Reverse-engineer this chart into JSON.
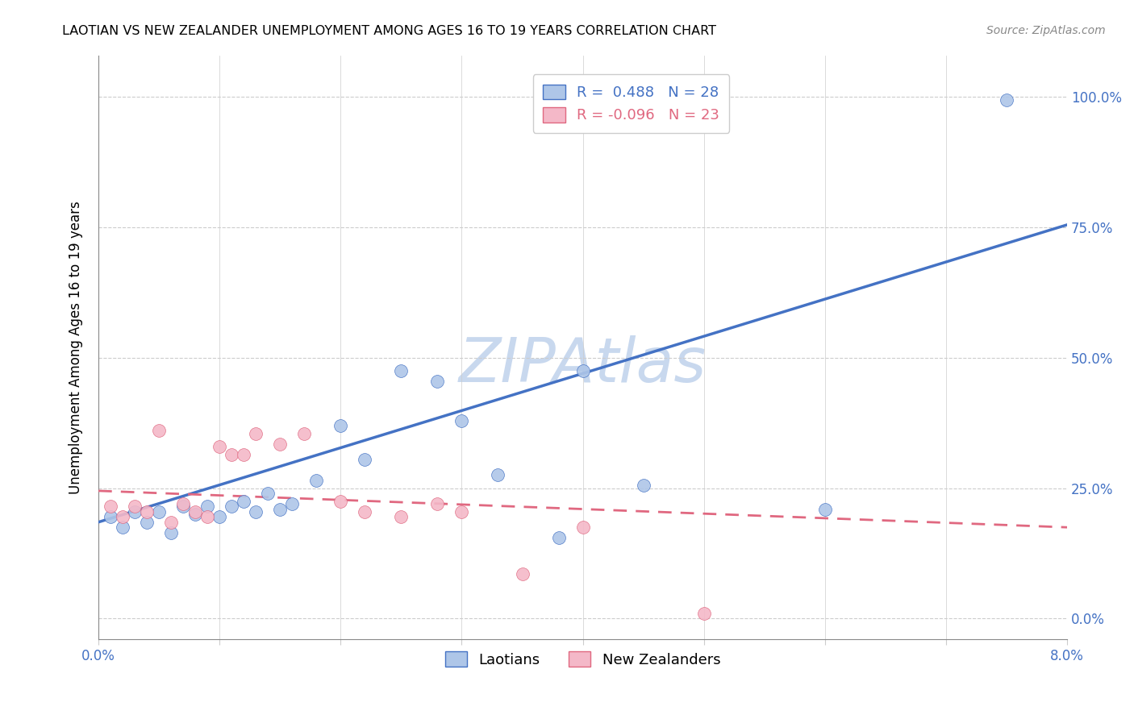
{
  "title": "LAOTIAN VS NEW ZEALANDER UNEMPLOYMENT AMONG AGES 16 TO 19 YEARS CORRELATION CHART",
  "source": "Source: ZipAtlas.com",
  "ylabel": "Unemployment Among Ages 16 to 19 years",
  "y_tick_labels": [
    "0.0%",
    "25.0%",
    "50.0%",
    "75.0%",
    "100.0%"
  ],
  "y_tick_values": [
    0.0,
    0.25,
    0.5,
    0.75,
    1.0
  ],
  "xlim": [
    0.0,
    0.08
  ],
  "ylim": [
    -0.04,
    1.08
  ],
  "legend_r_laotian": "R =  0.488",
  "legend_n_laotian": "N = 28",
  "legend_r_nz": "R = -0.096",
  "legend_n_nz": "N = 23",
  "laotian_color": "#aec6e8",
  "nz_color": "#f4b8c8",
  "line_laotian_color": "#4472c4",
  "line_nz_color": "#e06880",
  "watermark_color": "#c8d8ee",
  "laotian_scatter_x": [
    0.001,
    0.002,
    0.003,
    0.004,
    0.005,
    0.006,
    0.007,
    0.008,
    0.009,
    0.01,
    0.011,
    0.012,
    0.013,
    0.014,
    0.015,
    0.016,
    0.018,
    0.02,
    0.022,
    0.025,
    0.028,
    0.03,
    0.033,
    0.038,
    0.04,
    0.045,
    0.06,
    0.075
  ],
  "laotian_scatter_y": [
    0.195,
    0.175,
    0.205,
    0.185,
    0.205,
    0.165,
    0.215,
    0.2,
    0.215,
    0.195,
    0.215,
    0.225,
    0.205,
    0.24,
    0.21,
    0.22,
    0.265,
    0.37,
    0.305,
    0.475,
    0.455,
    0.38,
    0.275,
    0.155,
    0.475,
    0.255,
    0.21,
    0.995
  ],
  "nz_scatter_x": [
    0.001,
    0.002,
    0.003,
    0.004,
    0.005,
    0.006,
    0.007,
    0.008,
    0.009,
    0.01,
    0.011,
    0.012,
    0.013,
    0.015,
    0.017,
    0.02,
    0.022,
    0.025,
    0.028,
    0.03,
    0.035,
    0.04,
    0.05
  ],
  "nz_scatter_y": [
    0.215,
    0.195,
    0.215,
    0.205,
    0.36,
    0.185,
    0.22,
    0.205,
    0.195,
    0.33,
    0.315,
    0.315,
    0.355,
    0.335,
    0.355,
    0.225,
    0.205,
    0.195,
    0.22,
    0.205,
    0.085,
    0.175,
    0.01
  ],
  "laotian_line_x": [
    0.0,
    0.08
  ],
  "laotian_line_y": [
    0.185,
    0.755
  ],
  "nz_line_x": [
    0.0,
    0.08
  ],
  "nz_line_y": [
    0.245,
    0.175
  ]
}
